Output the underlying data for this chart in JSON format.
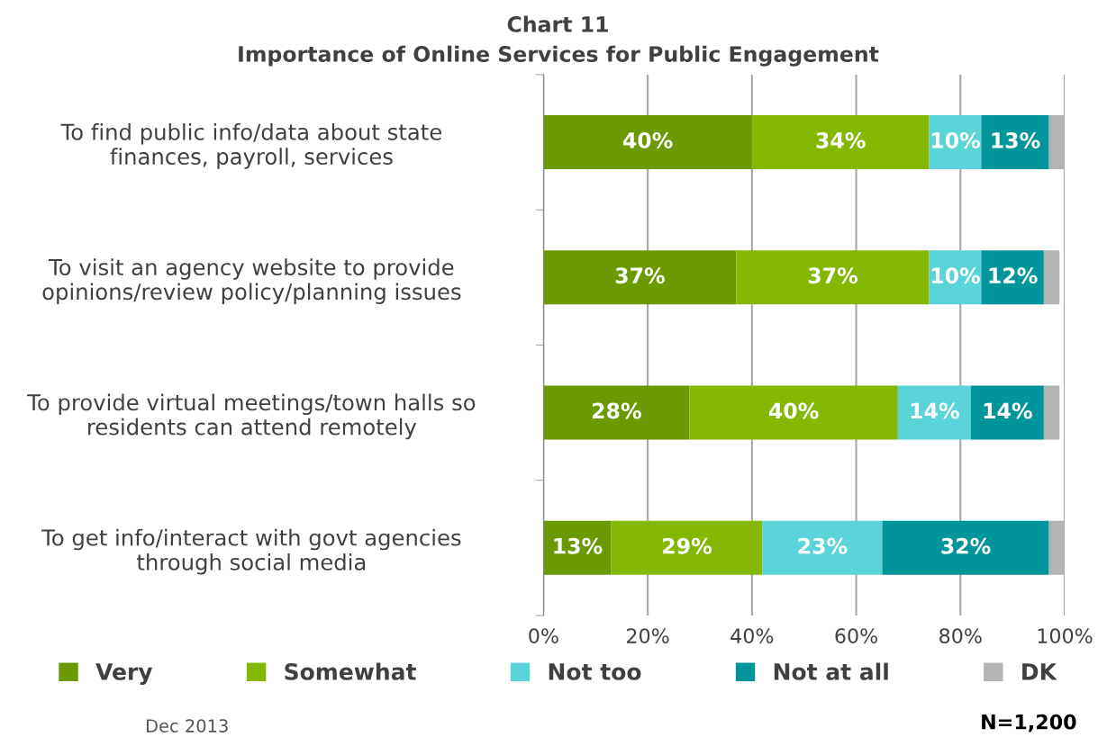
{
  "chart_data": {
    "type": "bar",
    "orientation": "horizontal",
    "stacked": true,
    "title": "Chart 11",
    "subtitle": "Importance of Online Services for Public Engagement",
    "categories": [
      "To find public info/data about state\nfinances, payroll, services",
      "To visit an agency website to provide\nopinions/review policy/planning issues",
      "To provide virtual meetings/town halls so\nresidents can attend remotely",
      "To get info/interact with govt agencies\nthrough social media"
    ],
    "series": [
      {
        "name": "Very",
        "color": "#6a9a00",
        "values": [
          40,
          37,
          28,
          13
        ],
        "value_labels": [
          "40%",
          "37%",
          "28%",
          "13%"
        ]
      },
      {
        "name": "Somewhat",
        "color": "#84b800",
        "values": [
          34,
          37,
          40,
          29
        ],
        "value_labels": [
          "34%",
          "37%",
          "40%",
          "29%"
        ]
      },
      {
        "name": "Not too",
        "color": "#5ad4d8",
        "values": [
          10,
          10,
          14,
          23
        ],
        "value_labels": [
          "10%",
          "10%",
          "14%",
          "23%"
        ]
      },
      {
        "name": "Not at all",
        "color": "#00959a",
        "values": [
          13,
          12,
          14,
          32
        ],
        "value_labels": [
          "13%",
          "12%",
          "14%",
          "32%"
        ]
      },
      {
        "name": "DK",
        "color": "#b3b3b3",
        "values": [
          3,
          3,
          3,
          3
        ]
      }
    ],
    "xlim": [
      0,
      100
    ],
    "xticks": [
      {
        "value": 0,
        "label": "0%"
      },
      {
        "value": 20,
        "label": "20%"
      },
      {
        "value": 40,
        "label": "40%"
      },
      {
        "value": 60,
        "label": "60%"
      },
      {
        "value": 80,
        "label": "80%"
      },
      {
        "value": 100,
        "label": "100%"
      }
    ],
    "grid": "x",
    "legend": "bottom",
    "annotations": [
      "Dec 2013",
      "N=1,200"
    ]
  }
}
